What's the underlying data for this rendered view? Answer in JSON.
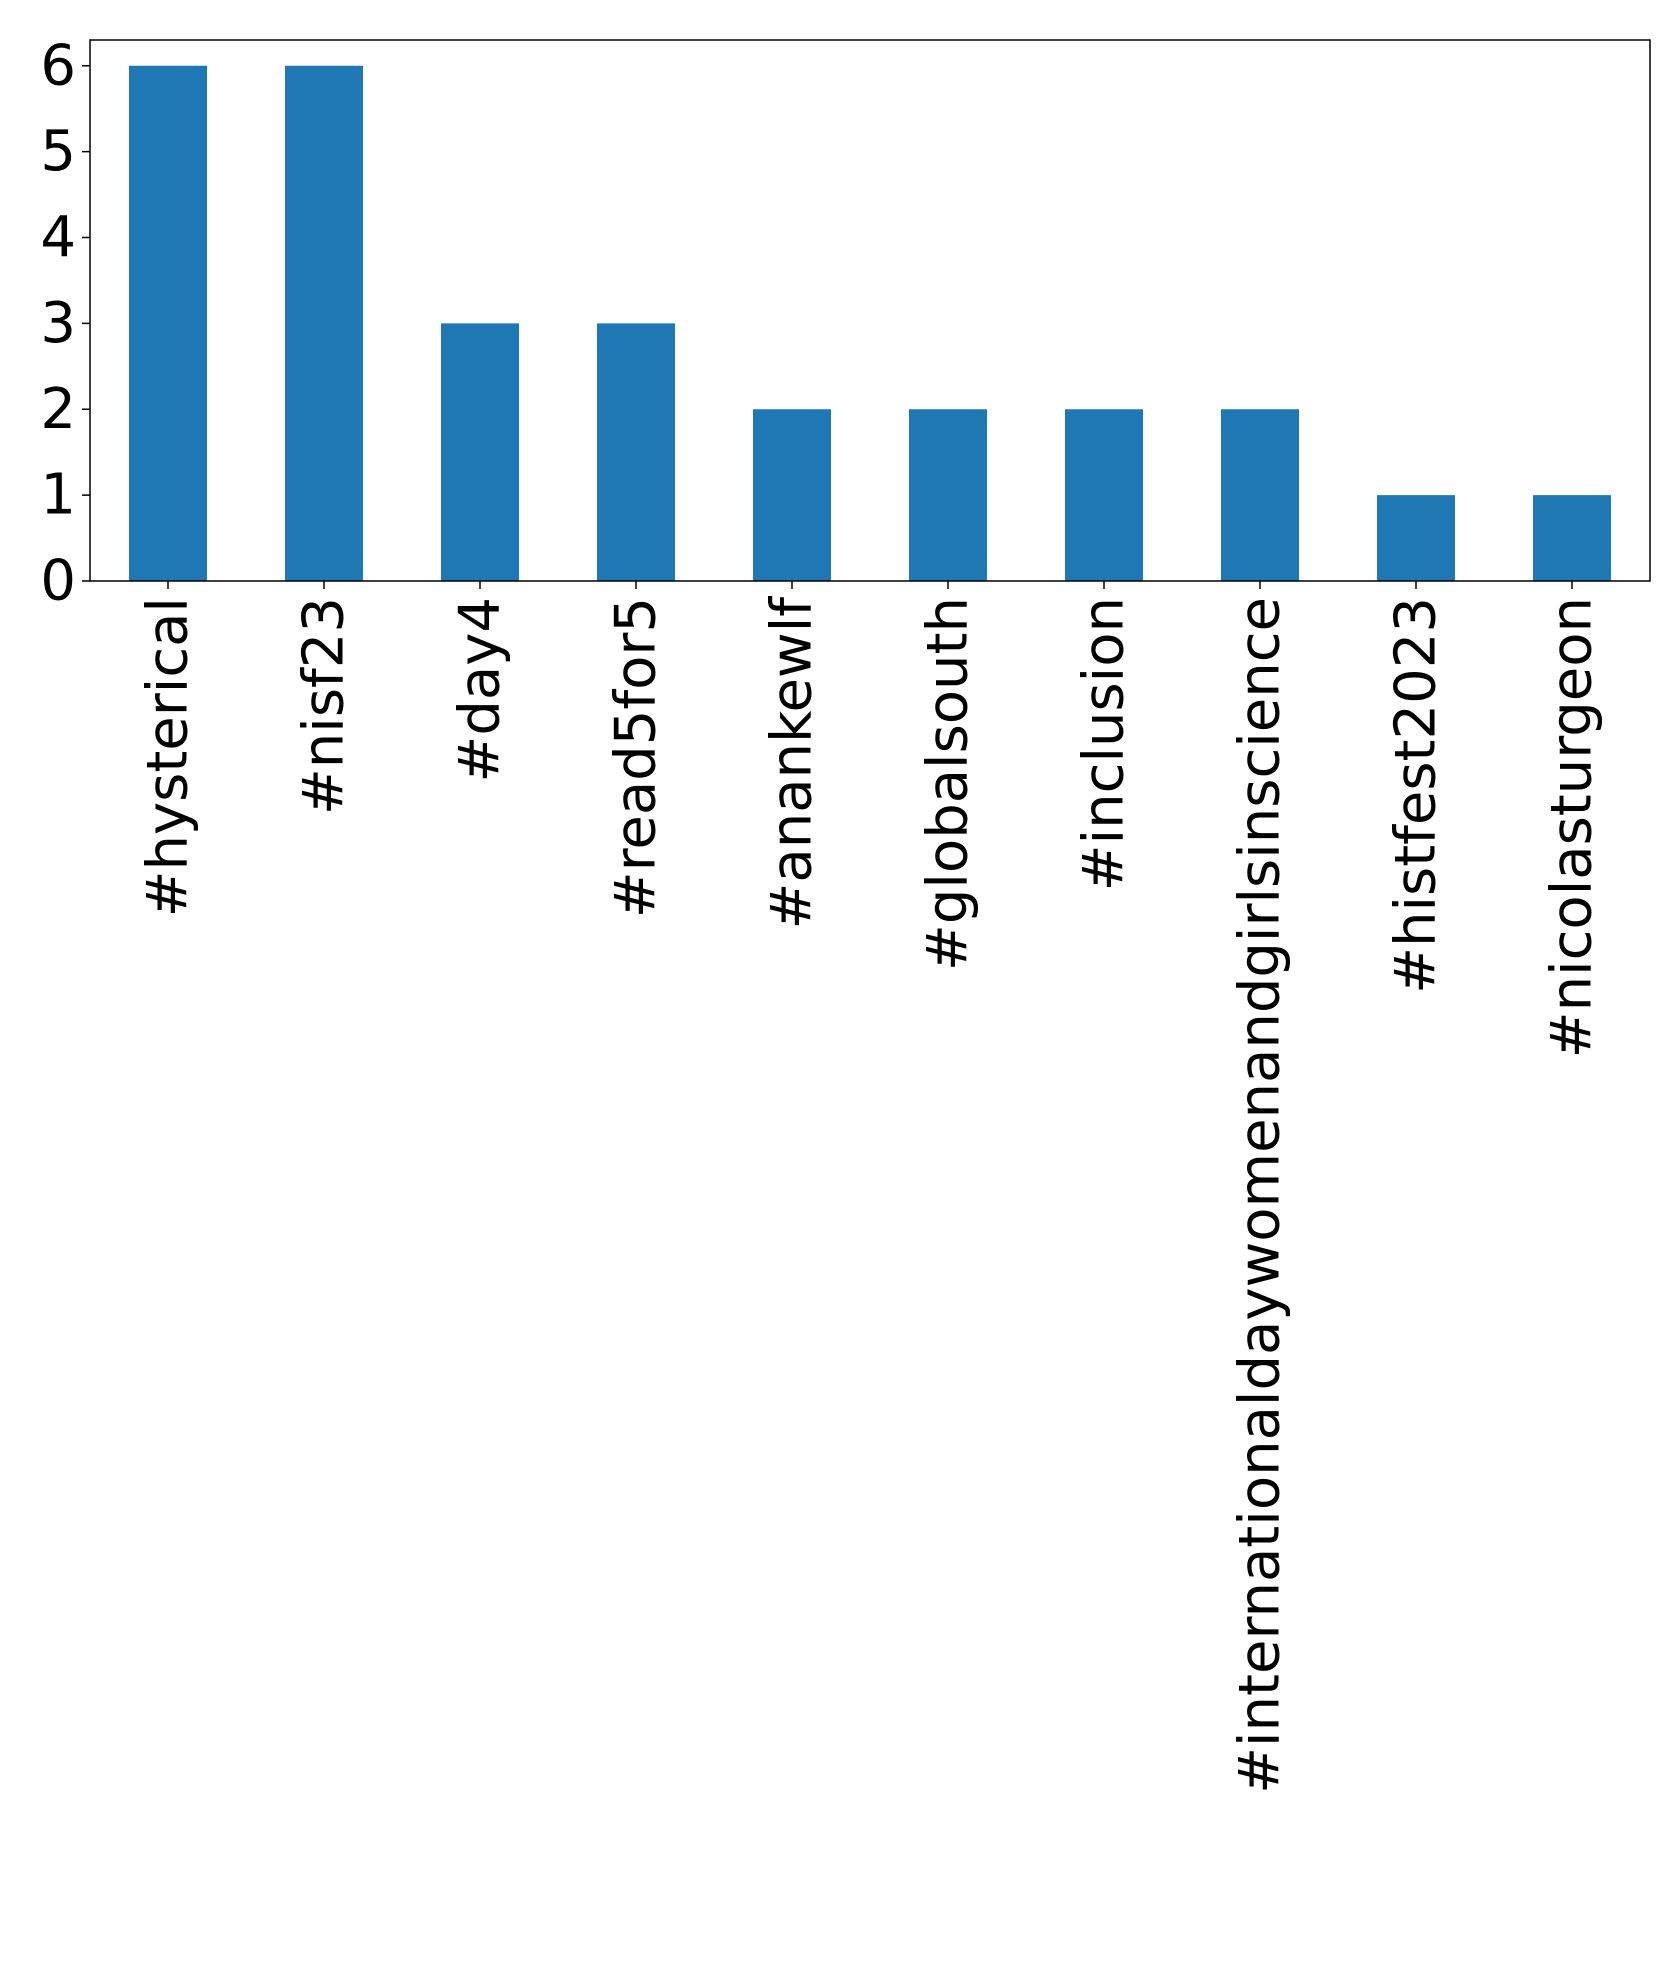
{
  "chart_data": {
    "type": "bar",
    "title": "",
    "xlabel": "",
    "ylabel": "",
    "categories": [
      "#hysterical",
      "#nisf23",
      "#day4",
      "#read5for5",
      "#anankewlf",
      "#globalsouth",
      "#inclusion",
      "#internationaldaywomenandgirlsinscience",
      "#histfest2023",
      "#nicolasturgeon"
    ],
    "values": [
      6,
      6,
      3,
      3,
      2,
      2,
      2,
      2,
      1,
      1
    ],
    "ylim": [
      0,
      6.3
    ],
    "yticks": [
      0,
      1,
      2,
      3,
      4,
      5,
      6
    ],
    "bar_color": "#1f77b4",
    "grid": false,
    "legend": "none"
  }
}
